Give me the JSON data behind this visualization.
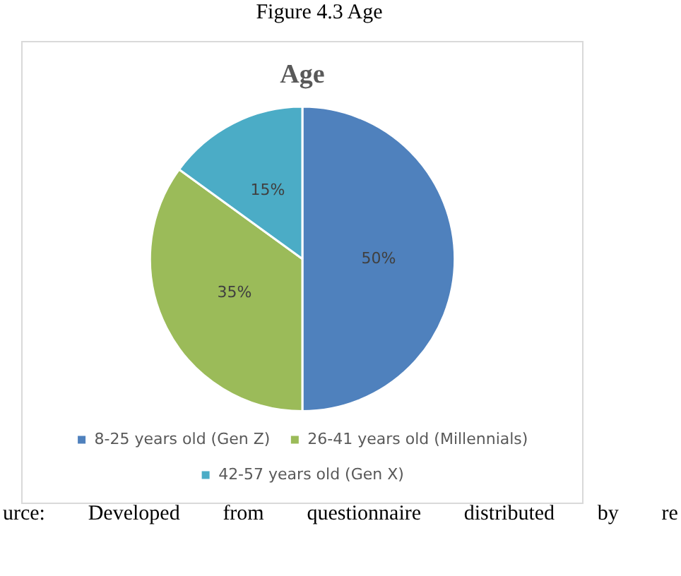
{
  "chart_data": {
    "type": "pie",
    "title": "Age",
    "categories": [
      "8-25 years old (Gen Z)",
      "26-41 years old (Millennials)",
      "42-57 years old (Gen X)"
    ],
    "values": [
      50,
      35,
      15
    ],
    "colors": [
      "#4f81bd",
      "#9bbb59",
      "#4bacc6"
    ],
    "value_labels": [
      "50%",
      "35%",
      "15%"
    ],
    "legend": "bottom",
    "annotations": [
      "Figure 4.3 Age",
      "urce: Developed from questionnaire distributed by re"
    ]
  }
}
